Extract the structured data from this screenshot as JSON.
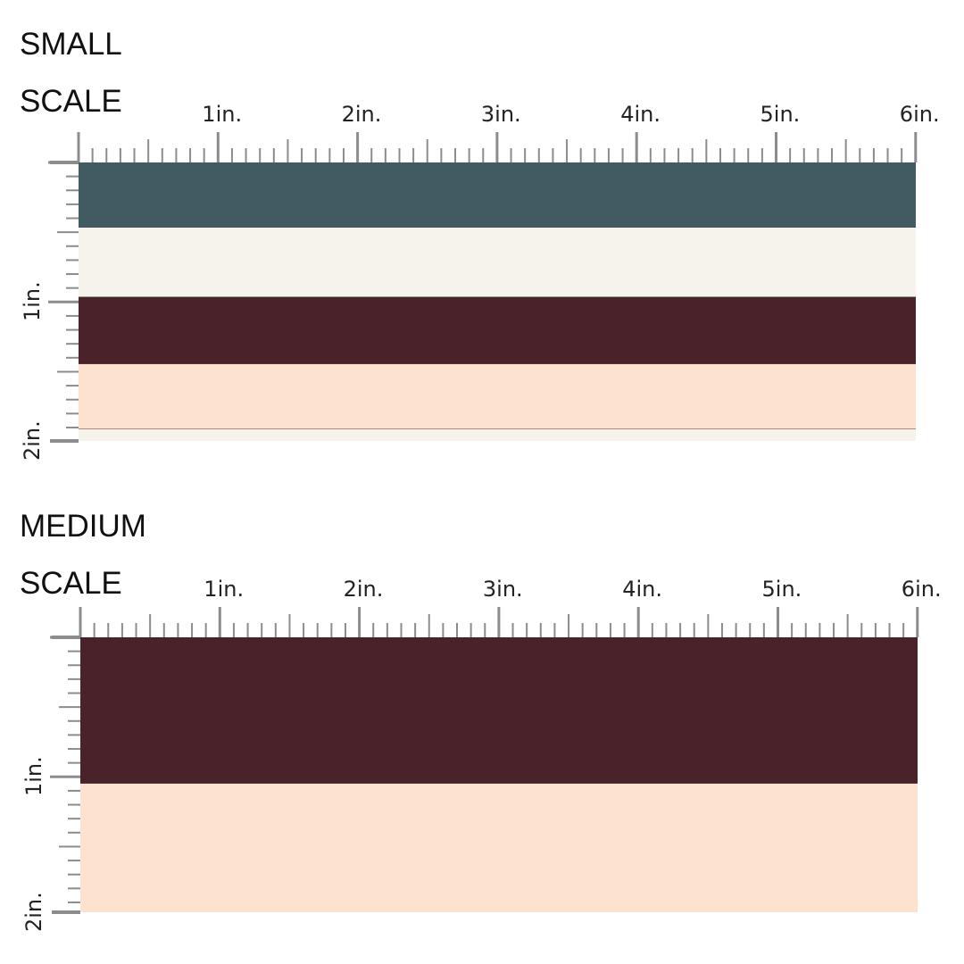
{
  "small_scale": {
    "title": "SMALL\nSCALE",
    "ruler": {
      "horizontal_labels": [
        "1in.",
        "2in.",
        "3in.",
        "4in.",
        "5in.",
        "6in."
      ],
      "vertical_labels": [
        "1in.",
        "2in."
      ],
      "color": "#8c8c8c"
    },
    "stripes": [
      {
        "name": "slate-blue",
        "color": "#425a62",
        "height_in": 0.47
      },
      {
        "name": "cream",
        "color": "#f6f3ec",
        "height_in": 0.5
      },
      {
        "name": "burgundy",
        "color": "#4a2229",
        "height_in": 0.48
      },
      {
        "name": "peach",
        "color": "#fde2d0",
        "height_in": 0.47
      },
      {
        "name": "cream",
        "color": "#f6f3ec",
        "height_in": 0.1
      }
    ]
  },
  "medium_scale": {
    "title": "MEDIUM\nSCALE",
    "ruler": {
      "horizontal_labels": [
        "1in.",
        "2in.",
        "3in.",
        "4in.",
        "5in.",
        "6in."
      ],
      "vertical_labels": [
        "1in.",
        "2in."
      ],
      "color": "#8c8c8c"
    },
    "stripes": [
      {
        "name": "burgundy",
        "color": "#4a2229",
        "height_in": 1.05
      },
      {
        "name": "peach",
        "color": "#fde2d0",
        "height_in": 0.93
      }
    ]
  }
}
